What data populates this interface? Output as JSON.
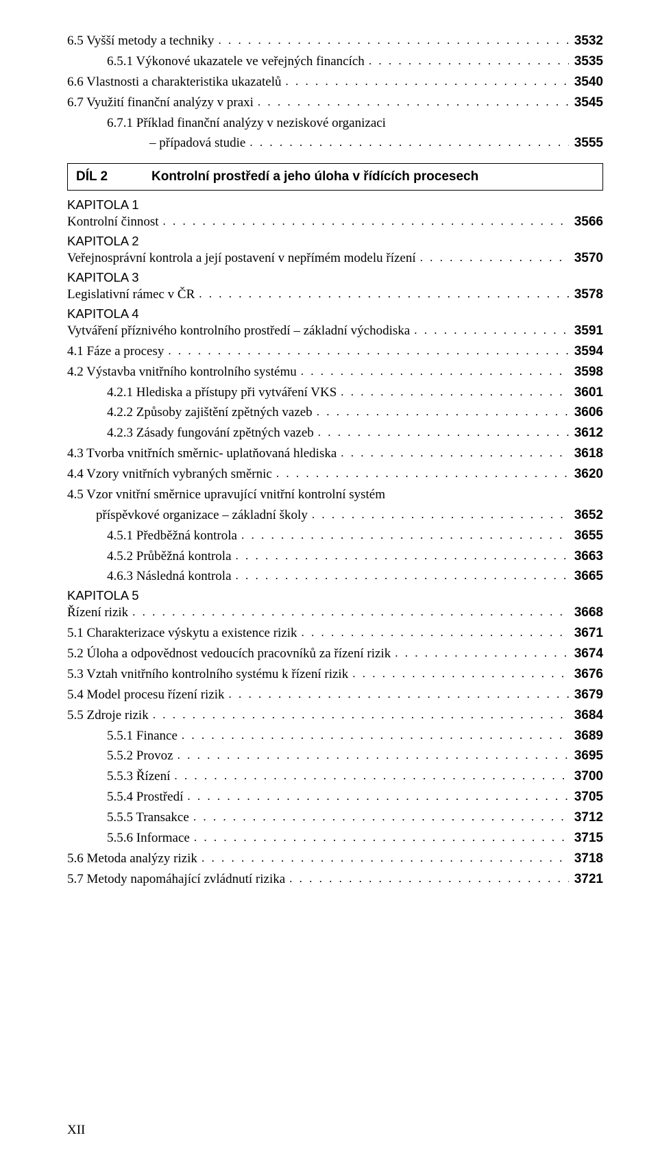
{
  "top": [
    {
      "label": "6.5  Vyšší metody a techniky",
      "page": "3532",
      "cls": ""
    },
    {
      "label": "6.5.1  Výkonové ukazatele ve veřejných financích",
      "page": "3535",
      "cls": "ind-1"
    },
    {
      "label": "6.6  Vlastnosti a charakteristika ukazatelů",
      "page": "3540",
      "cls": ""
    },
    {
      "label": "6.7  Využití finanční analýzy v praxi",
      "page": "3545",
      "cls": ""
    },
    {
      "label": "6.7.1  Příklad finanční analýzy v neziskové organizaci",
      "cont": "– případová studie",
      "page": "3555",
      "cls": "ind-1"
    }
  ],
  "dil": {
    "label": "DÍL 2",
    "title": "Kontrolní prostředí a jeho úloha v řídících procesech"
  },
  "entries": [
    {
      "kap": "KAPITOLA 1"
    },
    {
      "label": "Kontrolní činnost",
      "page": "3566",
      "cls": ""
    },
    {
      "kap": "KAPITOLA 2"
    },
    {
      "label": "Veřejnosprávní kontrola a její postavení v nepřímém modelu řízení",
      "page": "3570",
      "cls": ""
    },
    {
      "kap": "KAPITOLA 3"
    },
    {
      "label": "Legislativní rámec v ČR",
      "page": "3578",
      "cls": ""
    },
    {
      "kap": "KAPITOLA 4"
    },
    {
      "label": "Vytváření příznivého kontrolního prostředí – základní východiska",
      "page": "3591",
      "cls": ""
    },
    {
      "label": "4.1  Fáze a procesy",
      "page": "3594",
      "cls": ""
    },
    {
      "label": "4.2  Výstavba vnitřního kontrolního systému",
      "page": "3598",
      "cls": ""
    },
    {
      "label": "4.2.1  Hlediska a přístupy při vytváření VKS",
      "page": "3601",
      "cls": "ind-1"
    },
    {
      "label": "4.2.2  Způsoby zajištění zpětných vazeb",
      "page": "3606",
      "cls": "ind-1"
    },
    {
      "label": "4.2.3  Zásady fungování zpětných vazeb",
      "page": "3612",
      "cls": "ind-1"
    },
    {
      "label": "4.3  Tvorba vnitřních směrnic- uplatňovaná hlediska",
      "page": "3618",
      "cls": ""
    },
    {
      "label": "4.4  Vzory vnitřních vybraných směrnic",
      "page": "3620",
      "cls": ""
    },
    {
      "label": "4.5  Vzor vnitřní směrnice upravující vnitřní kontrolní systém",
      "cont": "příspěvkové organizace – základní školy",
      "page": "3652",
      "cls": "",
      "contcls": "ind-half"
    },
    {
      "label": "4.5.1  Předběžná kontrola",
      "page": "3655",
      "cls": "ind-1"
    },
    {
      "label": "4.5.2  Průběžná kontrola",
      "page": "3663",
      "cls": "ind-1"
    },
    {
      "label": "4.6.3  Následná kontrola",
      "page": "3665",
      "cls": "ind-1"
    },
    {
      "kap": "KAPITOLA 5"
    },
    {
      "label": "Řízení rizik",
      "page": "3668",
      "cls": ""
    },
    {
      "label": "5.1  Charakterizace výskytu a existence rizik",
      "page": "3671",
      "cls": ""
    },
    {
      "label": "5.2  Úloha a odpovědnost vedoucích pracovníků za řízení rizik",
      "page": "3674",
      "cls": ""
    },
    {
      "label": "5.3  Vztah vnitřního kontrolního systému k řízení rizik",
      "page": "3676",
      "cls": ""
    },
    {
      "label": "5.4  Model procesu řízení rizik",
      "page": "3679",
      "cls": ""
    },
    {
      "label": "5.5  Zdroje rizik",
      "page": "3684",
      "cls": ""
    },
    {
      "label": "5.5.1  Finance",
      "page": "3689",
      "cls": "ind-1"
    },
    {
      "label": "5.5.2  Provoz",
      "page": "3695",
      "cls": "ind-1"
    },
    {
      "label": "5.5.3  Řízení",
      "page": "3700",
      "cls": "ind-1"
    },
    {
      "label": "5.5.4  Prostředí",
      "page": "3705",
      "cls": "ind-1"
    },
    {
      "label": "5.5.5  Transakce",
      "page": "3712",
      "cls": "ind-1"
    },
    {
      "label": "5.5.6  Informace",
      "page": "3715",
      "cls": "ind-1"
    },
    {
      "label": "5.6  Metoda analýzy rizik",
      "page": "3718",
      "cls": ""
    },
    {
      "label": "5.7  Metody napomáhající zvládnutí rizika",
      "page": "3721",
      "cls": ""
    }
  ],
  "pageNumber": "XII"
}
